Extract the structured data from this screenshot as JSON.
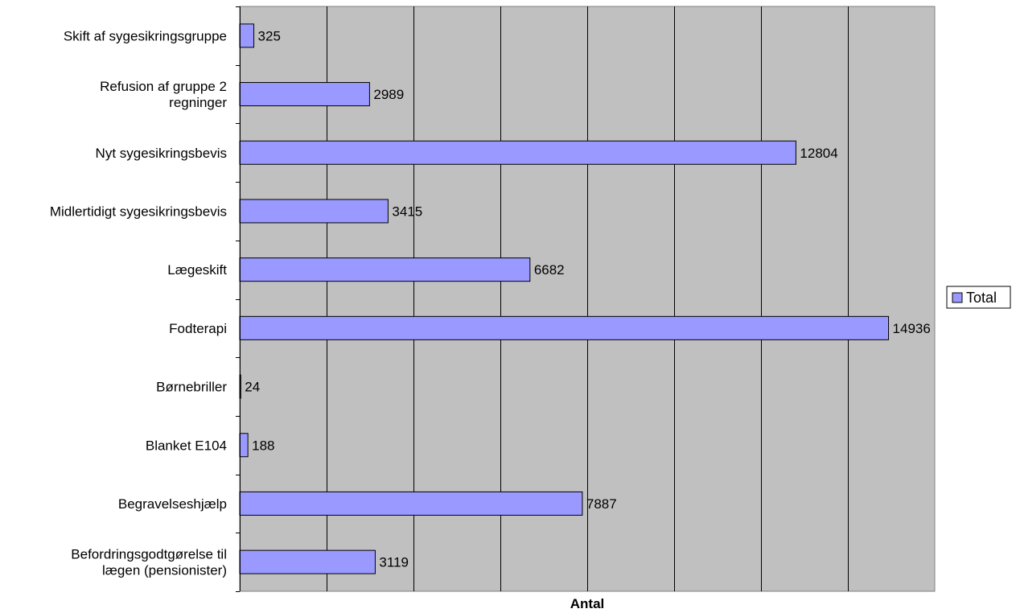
{
  "chart_data": {
    "type": "bar",
    "orientation": "horizontal",
    "categories": [
      "Skift af sygesikringsgruppe",
      "Refusion af gruppe 2\nregninger",
      "Nyt sygesikringsbevis",
      "Midlertidigt sygesikringsbevis",
      "Lægeskift",
      "Fodterapi",
      "Børnebriller",
      "Blanket E104",
      "Begravelseshjælp",
      "Befordringsgodtgørelse til\nlægen (pensionister)"
    ],
    "series": [
      {
        "name": "Total",
        "values": [
          325,
          2989,
          12804,
          3415,
          6682,
          14936,
          24,
          188,
          7887,
          3119
        ]
      }
    ],
    "data_labels": [
      "325",
      "2989",
      "12804",
      "3415",
      "6682",
      "14936",
      "24",
      "188",
      "7887",
      "3119"
    ],
    "xlabel": "Antal",
    "ylabel": "",
    "xlim": [
      0,
      16000
    ],
    "grid": true,
    "legend_position": "right",
    "colors": {
      "bar_fill": "#9999ff",
      "bar_stroke": "#000000",
      "plot_background": "#c0c0c0",
      "gridline": "#000000"
    }
  }
}
